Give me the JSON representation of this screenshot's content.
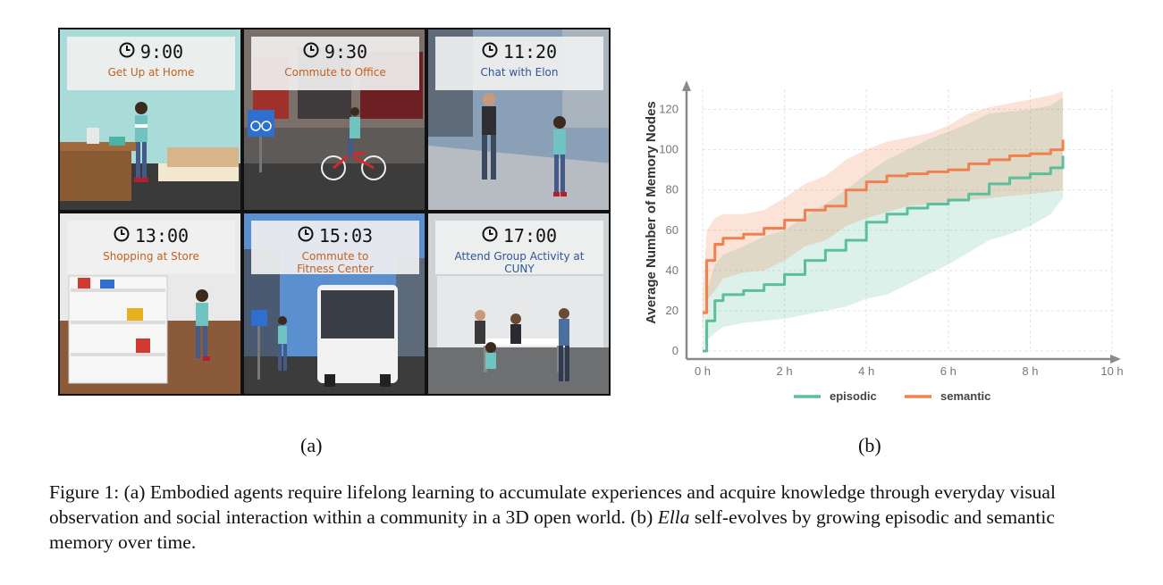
{
  "panel_a": {
    "tiles": [
      {
        "time": "9:00",
        "event": "Get Up at Home",
        "event_color": "#c2611f"
      },
      {
        "time": "9:30",
        "event": "Commute to Office",
        "event_color": "#c2611f"
      },
      {
        "time": "11:20",
        "event": "Chat with Elon",
        "event_color": "#2f5597"
      },
      {
        "time": "13:00",
        "event": "Shopping at Store",
        "event_color": "#c2611f"
      },
      {
        "time": "15:03",
        "event": "Commute to Fitness Center",
        "event_color": "#c2611f"
      },
      {
        "time": "17:00",
        "event": "Attend Group Activity at CUNY",
        "event_color": "#2f5597"
      }
    ],
    "label": "(a)"
  },
  "panel_b": {
    "label": "(b)"
  },
  "chart_data": {
    "type": "line",
    "ylabel": "Average Number of Memory Nodes",
    "xlabel": "",
    "xlim": [
      0,
      10
    ],
    "ylim": [
      0,
      130
    ],
    "x_ticks": [
      "0 h",
      "2 h",
      "4 h",
      "6 h",
      "8 h",
      "10 h"
    ],
    "y_ticks": [
      "0",
      "20",
      "40",
      "60",
      "80",
      "100",
      "120"
    ],
    "grid": true,
    "legend_position": "bottom",
    "series": [
      {
        "name": "episodic",
        "color": "#5dbf9a",
        "x": [
          0,
          0.1,
          0.3,
          0.5,
          1.0,
          1.5,
          2.0,
          2.5,
          3.0,
          3.5,
          4.0,
          4.5,
          5.0,
          5.5,
          6.0,
          6.5,
          7.0,
          7.5,
          8.0,
          8.5,
          8.8
        ],
        "values": [
          0,
          15,
          25,
          28,
          30,
          33,
          38,
          45,
          50,
          55,
          64,
          68,
          71,
          73,
          75,
          78,
          83,
          86,
          88,
          91,
          97
        ],
        "lower": [
          0,
          5,
          9,
          12,
          14,
          15,
          16,
          18,
          20,
          22,
          26,
          28,
          33,
          38,
          43,
          49,
          55,
          58,
          62,
          68,
          76
        ],
        "upper": [
          0,
          30,
          43,
          48,
          52,
          57,
          60,
          67,
          73,
          80,
          88,
          95,
          100,
          105,
          109,
          113,
          118,
          119,
          120,
          122,
          126
        ]
      },
      {
        "name": "semantic",
        "color": "#f0814f",
        "x": [
          0,
          0.1,
          0.3,
          0.5,
          1.0,
          1.5,
          2.0,
          2.5,
          3.0,
          3.5,
          4.0,
          4.5,
          5.0,
          5.5,
          6.0,
          6.5,
          7.0,
          7.5,
          8.0,
          8.5,
          8.8
        ],
        "values": [
          19,
          45,
          53,
          56,
          58,
          61,
          65,
          70,
          72,
          80,
          84,
          87,
          88,
          89,
          90,
          93,
          95,
          97,
          98,
          100,
          105
        ],
        "lower": [
          10,
          25,
          30,
          36,
          39,
          40,
          45,
          52,
          55,
          62,
          66,
          69,
          72,
          73,
          74,
          75,
          76,
          77,
          78,
          79,
          80
        ],
        "upper": [
          28,
          60,
          66,
          68,
          68,
          70,
          76,
          83,
          87,
          95,
          100,
          104,
          106,
          108,
          112,
          118,
          121,
          123,
          125,
          127,
          129
        ]
      }
    ]
  },
  "caption": {
    "prefix": "Figure 1: (a) Embodied agents require lifelong learning to accumulate experiences and acquire knowledge through everyday visual observation and social interaction within a community in a 3D open world. (b) ",
    "italic": "Ella",
    "suffix": " self-evolves by growing episodic and semantic memory over time."
  }
}
